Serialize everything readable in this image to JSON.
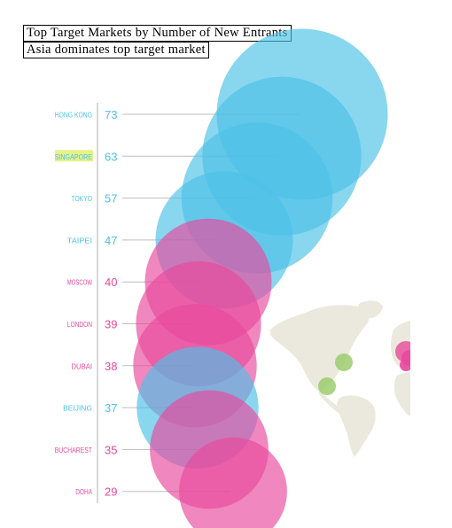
{
  "title": "Top Target Markets by Number of New Entrants",
  "subtitle": "Asia dominates top target market",
  "colors": {
    "asia": "#4cc1e6",
    "other": "#e8499c",
    "highlight": "#e4f28a",
    "map_land": "#ebe9dd",
    "map_marker": "#9ccc6e",
    "axis": "#bdbdbd"
  },
  "chart_data": {
    "type": "bubble",
    "categories": [
      "HONG KONG",
      "SINGAPORE",
      "TOKYO",
      "TAIPEI",
      "MOSCOW",
      "LONDON",
      "DUBAI",
      "BEIJING",
      "BUCHAREST",
      "DOHA"
    ],
    "values": [
      73,
      63,
      57,
      47,
      40,
      39,
      38,
      37,
      35,
      29
    ],
    "region": [
      "asia",
      "asia",
      "asia",
      "asia",
      "other",
      "other",
      "other",
      "asia",
      "other",
      "other"
    ],
    "highlighted": [
      "SINGAPORE"
    ],
    "grid": false
  }
}
